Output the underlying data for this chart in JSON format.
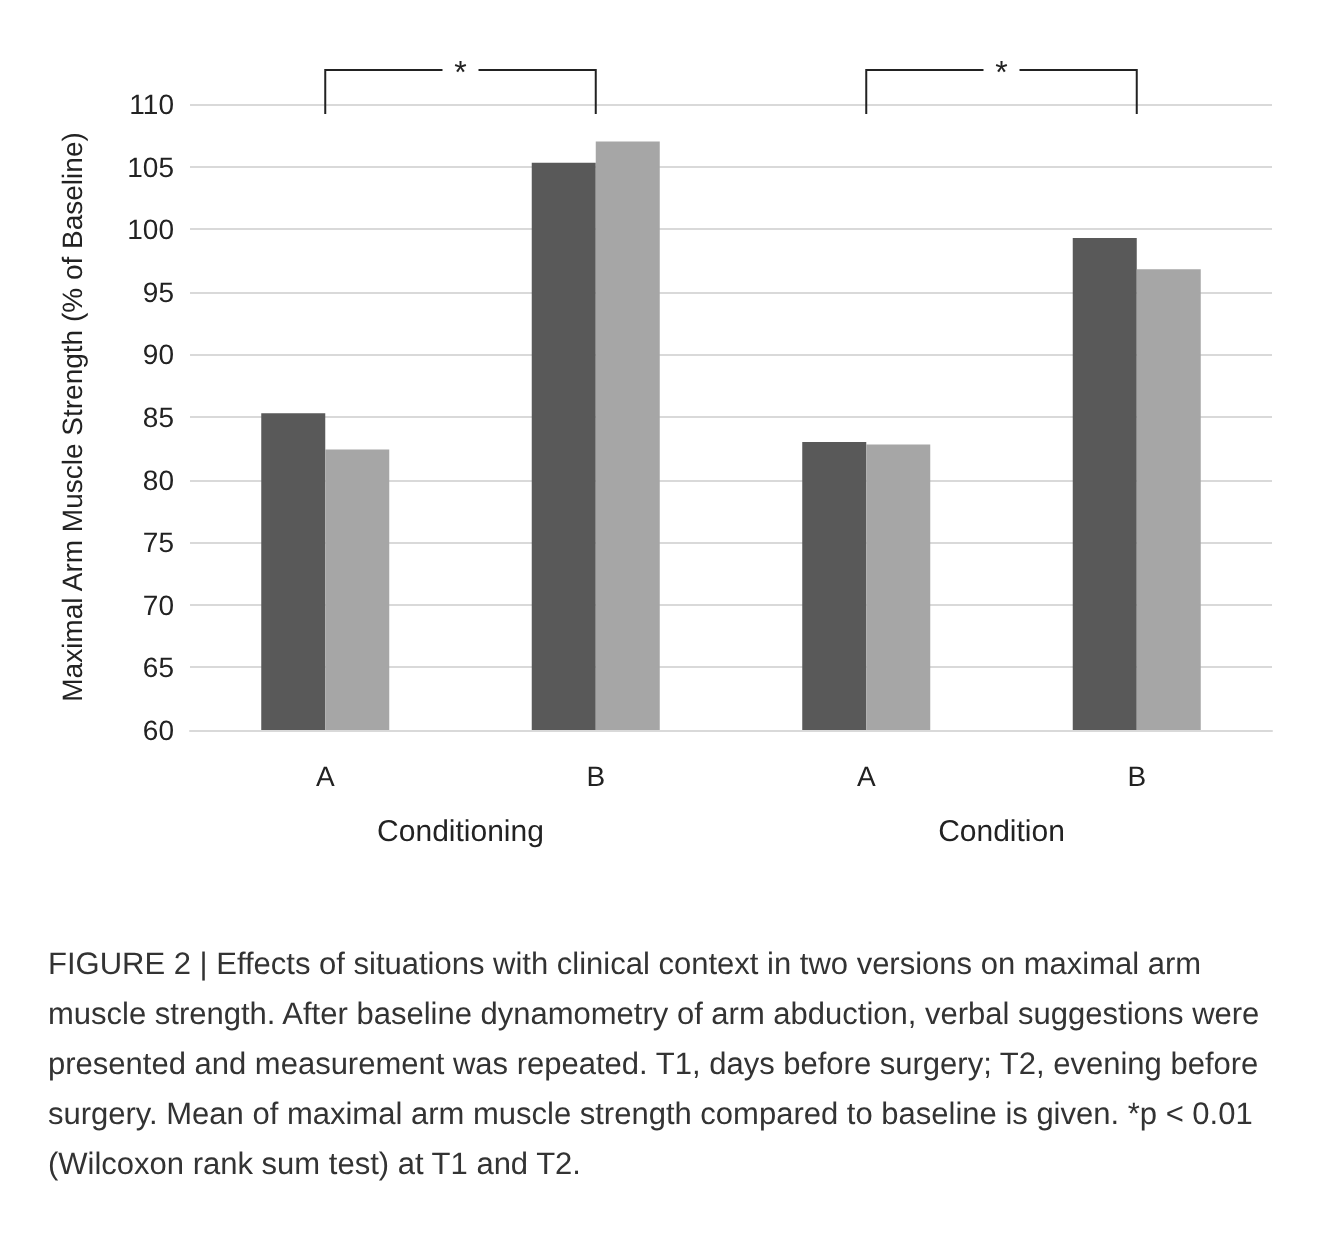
{
  "chart_data": {
    "type": "bar",
    "ylabel": "Maximal Arm Muscle Strength (% of Baseline)",
    "categories": [
      "A",
      "B",
      "A",
      "B"
    ],
    "series": [
      {
        "color": "#595959",
        "values": [
          85.3,
          105.3,
          83.0,
          99.3
        ]
      },
      {
        "color": "#a6a6a6",
        "values": [
          82.4,
          107.0,
          82.8,
          96.8
        ]
      }
    ],
    "ylim": [
      60,
      110
    ],
    "yticks": [
      60,
      65,
      70,
      75,
      80,
      85,
      90,
      95,
      100,
      105,
      110
    ],
    "grid": "y",
    "annotations": [
      "Conditioning",
      "Condition",
      "*",
      "*",
      "FIGURE 2 | Effects of situations with clinical context in two versions on maximal arm muscle strength. After baseline dynamometry of arm abduction, verbal suggestions were presented and measurement was repeated. T1, days before surgery; T2, evening before surgery. Mean of maximal arm muscle strength compared to baseline is given. *p < 0.01 (Wilcoxon rank sum test) at T1 and T2."
    ]
  }
}
